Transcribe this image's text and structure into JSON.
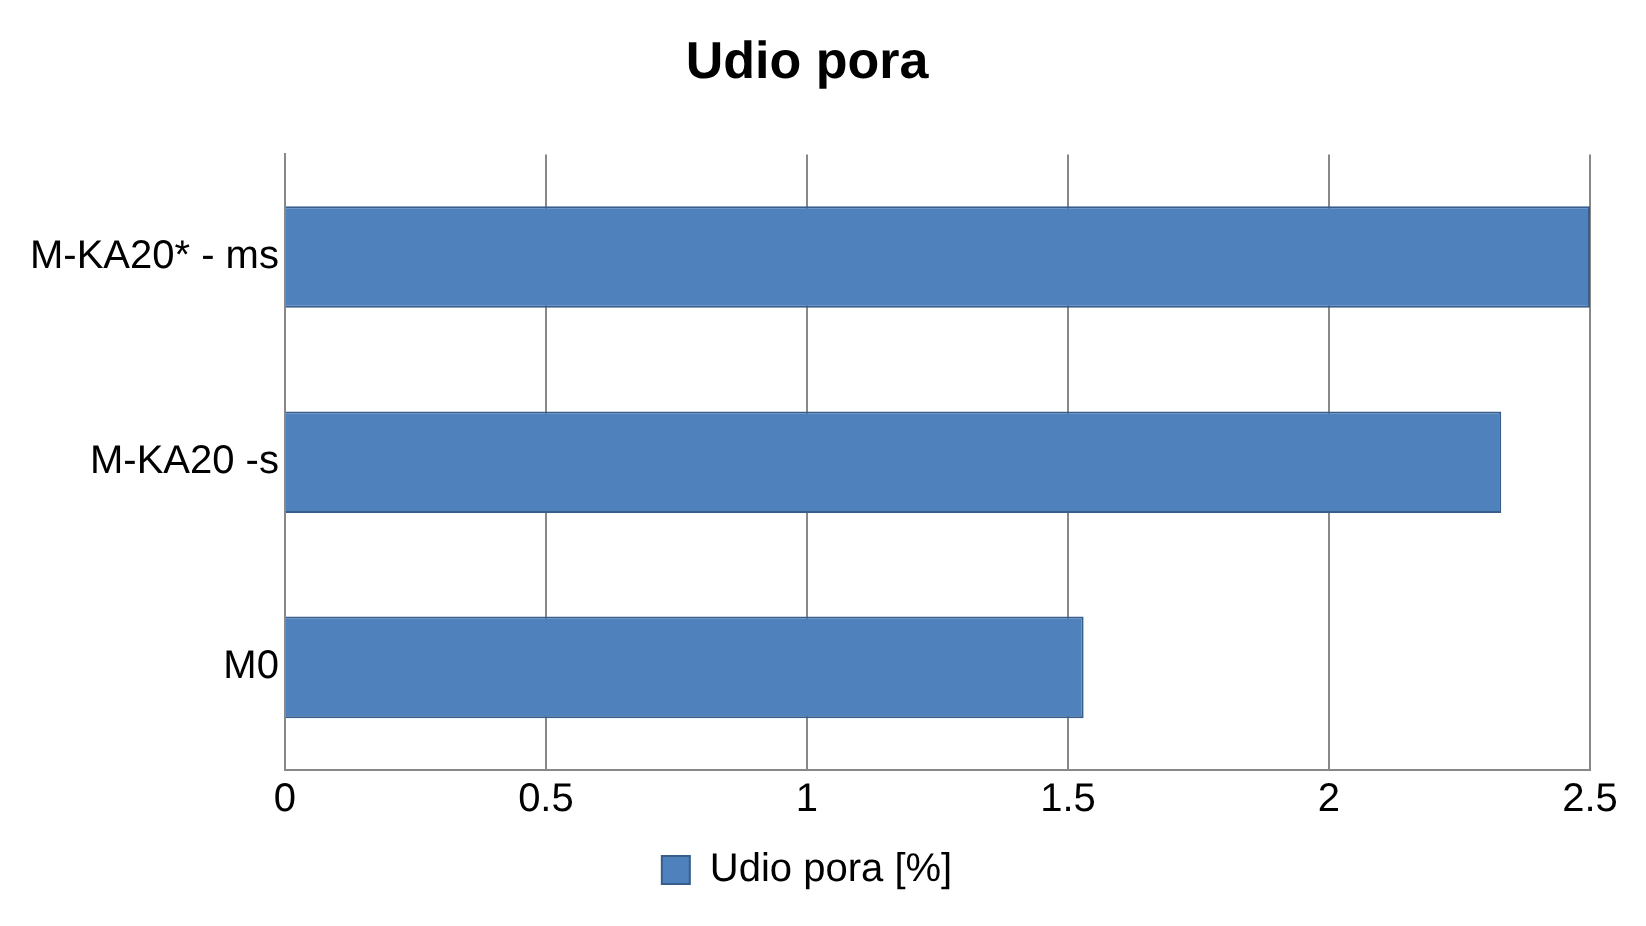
{
  "chart_data": {
    "type": "bar",
    "orientation": "horizontal",
    "title": "Udio pora",
    "categories": [
      "M-KA20* - ms",
      "M-KA20 -s",
      "M0"
    ],
    "series": [
      {
        "name": "Udio pora [%]",
        "color": "#4f81bd",
        "values": [
          2.5,
          2.33,
          1.53
        ]
      }
    ],
    "xlim": [
      0,
      2.5
    ],
    "xticks": [
      0,
      0.5,
      1,
      1.5,
      2,
      2.5
    ],
    "grid": "x",
    "legend": "bottom"
  }
}
